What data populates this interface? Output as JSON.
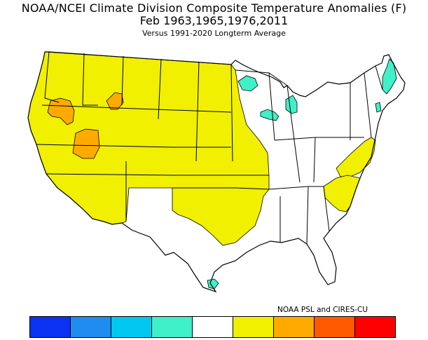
{
  "title": {
    "line1": "NOAA/NCEI Climate Division Composite Temperature Anomalies (F)",
    "line2": "Feb   1963,1965,1976,2011",
    "line3": "Versus 1991-2020 Longterm Average"
  },
  "credit": "NOAA PSL and CIRES-CU",
  "legend": {
    "colors": [
      "#0a32f0",
      "#1e8cf0",
      "#00c8f0",
      "#40f0c8",
      "#ffffff",
      "#f0f000",
      "#ffaa00",
      "#ff5a00",
      "#ff0000"
    ]
  },
  "map": {
    "colors": {
      "near_normal": "#ffffff",
      "warm1": "#f0f000",
      "warm2": "#ffaa00",
      "cool1": "#40f0c8",
      "outline": "#000000"
    },
    "regions": [
      {
        "id": "west-plains",
        "class": "warm1"
      },
      {
        "id": "mid-atlantic",
        "class": "warm1"
      },
      {
        "id": "carolinas",
        "class": "warm1"
      },
      {
        "id": "oregon-warm",
        "class": "warm2"
      },
      {
        "id": "idaho-warm",
        "class": "warm2"
      },
      {
        "id": "nevada-warm",
        "class": "warm2"
      },
      {
        "id": "minnesota-cool",
        "class": "cool1"
      },
      {
        "id": "wisconsin-cool",
        "class": "cool1"
      },
      {
        "id": "michigan-cool",
        "class": "cool1"
      },
      {
        "id": "maine-cool",
        "class": "cool1"
      },
      {
        "id": "vermont-cool",
        "class": "cool1"
      },
      {
        "id": "texas-coast-cool",
        "class": "cool1"
      }
    ]
  }
}
